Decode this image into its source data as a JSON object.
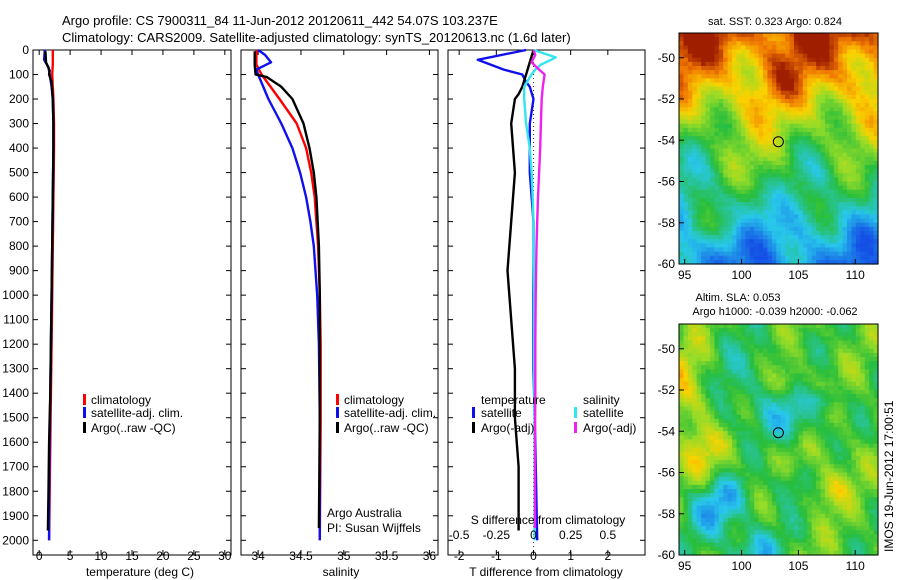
{
  "header": {
    "line1": "Argo profile: CS 7900311_84 11-Jun-2012 20120611_442 54.07S 103.237E",
    "line2": "Climatology: CARS2009. Satellite-adjusted climatology: synTS_20120613.nc (1.6d later)"
  },
  "side_stamp": "IMOS 19-Jun-2012 17:00:51",
  "colors": {
    "red": "#ff0000",
    "blue": "#1010ee",
    "black": "#000000",
    "cyan": "#33e6ee",
    "magenta": "#ee22ee"
  },
  "chart_data": [
    {
      "type": "line",
      "id": "temperature",
      "xlabel": "temperature (deg C)",
      "xlim": [
        -1,
        31
      ],
      "ylim": [
        2060,
        0
      ],
      "xticks": [
        "0",
        "5",
        "10",
        "15",
        "20",
        "25",
        "30"
      ],
      "yticks": [
        "0",
        "100",
        "200",
        "300",
        "400",
        "500",
        "600",
        "700",
        "800",
        "900",
        "1000",
        "1100",
        "1200",
        "1300",
        "1400",
        "1500",
        "1600",
        "1700",
        "1800",
        "1900",
        "2000"
      ],
      "legend": [
        "climatology",
        "satellite-adj. clim.",
        "Argo(..raw -QC)"
      ],
      "series": [
        {
          "name": "climatology",
          "color": "red",
          "y": [
            0,
            60,
            100,
            150,
            200,
            300,
            400,
            600,
            800,
            1000,
            1200,
            1400,
            1600,
            1800,
            2000
          ],
          "x": [
            2.2,
            2.2,
            2.1,
            2.2,
            2.3,
            2.4,
            2.4,
            2.3,
            2.2,
            2.1,
            2.0,
            1.9,
            1.8,
            1.7,
            1.6
          ]
        },
        {
          "name": "satellite-adj. clim.",
          "color": "blue",
          "y": [
            0,
            40,
            70,
            100,
            150,
            200,
            300,
            400,
            600,
            800,
            1000,
            1200,
            1400,
            1600,
            1800,
            2000
          ],
          "x": [
            0.9,
            0.8,
            1.5,
            1.7,
            2.0,
            2.2,
            2.3,
            2.3,
            2.2,
            2.1,
            2.0,
            1.9,
            1.8,
            1.7,
            1.6,
            1.6
          ]
        },
        {
          "name": "Argo(..raw -QC)",
          "color": "black",
          "y": [
            5,
            50,
            85,
            100,
            130,
            200,
            300,
            400,
            600,
            800,
            1000,
            1200,
            1400,
            1600,
            1800,
            1960
          ],
          "x": [
            1.0,
            1.1,
            1.7,
            1.6,
            2.0,
            2.2,
            2.3,
            2.3,
            2.2,
            2.1,
            2.0,
            1.9,
            1.8,
            1.6,
            1.5,
            1.4
          ]
        }
      ]
    },
    {
      "type": "line",
      "id": "salinity",
      "xlabel": "salinity",
      "xlim": [
        33.8,
        36.1
      ],
      "ylim": [
        2060,
        0
      ],
      "xticks": [
        "34",
        "34.5",
        "35",
        "35.5",
        "36"
      ],
      "legend": [
        "climatology",
        "satellite-adj. clim.",
        "Argo(..raw -QC)"
      ],
      "annotation": [
        "Argo Australia",
        "PI: Susan Wijffels"
      ],
      "series": [
        {
          "name": "climatology",
          "color": "red",
          "y": [
            0,
            60,
            100,
            200,
            300,
            400,
            500,
            600,
            800,
            1000,
            1200,
            1500,
            2000
          ],
          "x": [
            33.98,
            33.98,
            34.04,
            34.25,
            34.45,
            34.56,
            34.62,
            34.66,
            34.7,
            34.72,
            34.73,
            34.73,
            34.72
          ]
        },
        {
          "name": "satellite-adj. clim.",
          "color": "blue",
          "y": [
            0,
            20,
            50,
            80,
            100,
            200,
            300,
            400,
            500,
            600,
            700,
            800,
            1000,
            1200,
            1500,
            2000
          ],
          "x": [
            34.0,
            34.08,
            34.15,
            33.98,
            34.0,
            34.12,
            34.27,
            34.4,
            34.49,
            34.56,
            34.61,
            34.65,
            34.69,
            34.71,
            34.72,
            34.72
          ]
        },
        {
          "name": "Argo(..raw -QC)",
          "color": "black",
          "y": [
            5,
            60,
            100,
            110,
            150,
            200,
            300,
            400,
            500,
            600,
            800,
            1000,
            1200,
            1500,
            1950
          ],
          "x": [
            33.96,
            33.96,
            33.97,
            34.1,
            34.27,
            34.4,
            34.53,
            34.6,
            34.65,
            34.68,
            34.71,
            34.72,
            34.72,
            34.72,
            34.71
          ]
        }
      ]
    },
    {
      "type": "line",
      "id": "difference",
      "xlabel": "T difference from climatology",
      "top_label": "S difference from climatology",
      "xlim": [
        -2.3,
        3.0
      ],
      "ylim": [
        2060,
        0
      ],
      "xticks": [
        "-2",
        "-1",
        "0",
        "1",
        "2"
      ],
      "top_ticks": [
        "-0.5",
        "-0.25",
        "0",
        "0.25",
        "0.5"
      ],
      "legend_groups": [
        {
          "title": "temperature",
          "entries": [
            "satellite",
            "Argo(-adj)"
          ]
        },
        {
          "title": "salinity",
          "entries": [
            "satellite",
            "Argo(-adj)"
          ]
        }
      ],
      "series": [
        {
          "name": "temperature satellite",
          "color": "blue",
          "y": [
            0,
            40,
            80,
            100,
            130,
            150,
            200,
            300,
            500,
            700,
            1000,
            1300,
            1600,
            2000
          ],
          "x": [
            -0.2,
            -1.5,
            -0.8,
            -0.3,
            -0.2,
            -0.1,
            0.0,
            -0.1,
            -0.1,
            0.0,
            0.0,
            0.0,
            0.05,
            0.1
          ]
        },
        {
          "name": "temperature Argo(-adj)",
          "color": "black",
          "y": [
            0,
            100,
            150,
            180,
            200,
            300,
            500,
            700,
            900,
            1100,
            1300,
            1500,
            1700,
            1960
          ],
          "x": [
            0,
            -0.2,
            -0.3,
            -0.4,
            -0.5,
            -0.6,
            -0.5,
            -0.6,
            -0.7,
            -0.6,
            -0.5,
            -0.5,
            -0.4,
            -0.4
          ]
        },
        {
          "name": "salinity satellite",
          "color": "cyan",
          "y": [
            0,
            30,
            60,
            80,
            100,
            150,
            200,
            300,
            400,
            500,
            600,
            700,
            800,
            1000,
            1300,
            1600,
            2000
          ],
          "x": [
            0.0,
            0.6,
            0.2,
            0.05,
            -0.05,
            -0.25,
            -0.25,
            -0.2,
            -0.1,
            -0.05,
            -0.02,
            0.0,
            0.0,
            0.02,
            0.02,
            0.03,
            0.03
          ]
        },
        {
          "name": "salinity Argo(-adj)",
          "color": "magenta",
          "y": [
            0,
            20,
            50,
            80,
            100,
            150,
            200,
            300,
            400,
            500,
            600,
            700,
            800,
            900,
            1000,
            1200,
            1400,
            1600,
            1800,
            1950
          ],
          "x": [
            0.0,
            0.05,
            -0.05,
            0.15,
            0.3,
            0.25,
            0.22,
            0.2,
            0.18,
            0.15,
            0.12,
            0.1,
            0.08,
            0.07,
            0.06,
            0.05,
            0.05,
            0.04,
            0.04,
            0.04
          ]
        }
      ]
    },
    {
      "type": "heatmap",
      "id": "sst-map",
      "title": "sat. SST: 0.323 Argo: 0.824",
      "xlim": [
        94.5,
        112
      ],
      "ylim": [
        -60,
        -48.8
      ],
      "xticks": [
        "95",
        "100",
        "105",
        "110"
      ],
      "yticks": [
        "-50",
        "-52",
        "-54",
        "-56",
        "-58",
        "-60"
      ],
      "marker": {
        "lon": 103.237,
        "lat": -54.07
      }
    },
    {
      "type": "heatmap",
      "id": "sla-map",
      "title_line1": "Altim. SLA: 0.053",
      "title_line2": "Argo h1000: -0.039 h2000: -0.062",
      "xlim": [
        94.5,
        112
      ],
      "ylim": [
        -60,
        -48.8
      ],
      "xticks": [
        "95",
        "100",
        "105",
        "110"
      ],
      "yticks": [
        "-50",
        "-52",
        "-54",
        "-56",
        "-58",
        "-60"
      ],
      "marker": {
        "lon": 103.237,
        "lat": -54.07
      }
    }
  ]
}
